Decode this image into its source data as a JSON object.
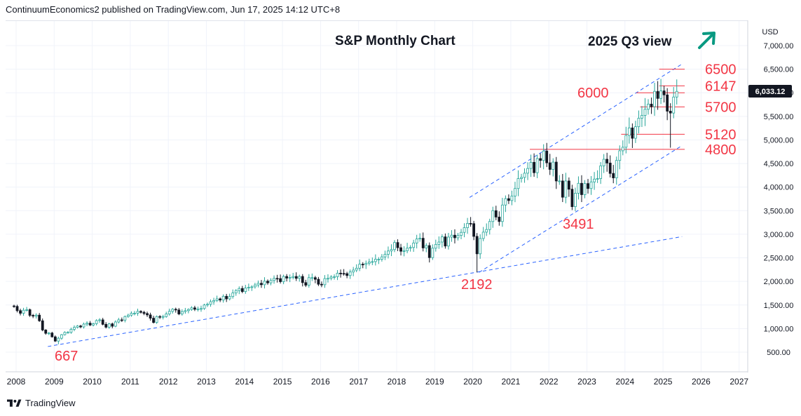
{
  "header": {
    "publisher": "ContinuumEconomics2 published on TradingView.com, Jun 17, 2025 14:12 UTC+8"
  },
  "footer": {
    "brand": "TradingView"
  },
  "currency": "USD",
  "last_price": "6,033.12",
  "colors": {
    "up": "#26a69a",
    "down": "#131722",
    "annotation": "#f23645",
    "trendline": "#2962ff",
    "arrow": "#089981",
    "grid": "#f0f3fa"
  },
  "chart_data": {
    "type": "candlestick",
    "title": "S&P Monthly Chart",
    "subtitle": "2025 Q3 view",
    "ylim": [
      0,
      7500
    ],
    "xlim": [
      2008.0,
      2027.2
    ],
    "y_ticks": [
      {
        "v": 500,
        "label": "500.00"
      },
      {
        "v": 1000,
        "label": "1,000.00"
      },
      {
        "v": 1500,
        "label": "1,500.00"
      },
      {
        "v": 2000,
        "label": "2,000.00"
      },
      {
        "v": 2500,
        "label": "2,500.00"
      },
      {
        "v": 3000,
        "label": "3,000.00"
      },
      {
        "v": 3500,
        "label": "3,500.00"
      },
      {
        "v": 4000,
        "label": "4,000.00"
      },
      {
        "v": 4500,
        "label": "4,500.00"
      },
      {
        "v": 5000,
        "label": "5,000.00"
      },
      {
        "v": 5500,
        "label": "5,500.00"
      },
      {
        "v": 6000,
        "label": "6,000.00"
      },
      {
        "v": 6500,
        "label": "6,500.00"
      },
      {
        "v": 7000,
        "label": "7,000.00"
      }
    ],
    "x_ticks": [
      "2008",
      "2009",
      "2010",
      "2011",
      "2012",
      "2013",
      "2014",
      "2015",
      "2016",
      "2017",
      "2018",
      "2019",
      "2020",
      "2021",
      "2022",
      "2023",
      "2024",
      "2025",
      "2026",
      "2027"
    ],
    "closes": [
      1470,
      1380,
      1325,
      1390,
      1400,
      1280,
      1265,
      1285,
      1165,
      970,
      900,
      905,
      825,
      735,
      795,
      870,
      920,
      920,
      985,
      1025,
      1055,
      1035,
      1095,
      1115,
      1075,
      1105,
      1170,
      1185,
      1090,
      1030,
      1100,
      1050,
      1140,
      1185,
      1180,
      1255,
      1285,
      1325,
      1325,
      1365,
      1345,
      1320,
      1290,
      1220,
      1130,
      1255,
      1245,
      1255,
      1310,
      1365,
      1410,
      1395,
      1310,
      1360,
      1380,
      1405,
      1440,
      1410,
      1415,
      1425,
      1500,
      1515,
      1570,
      1595,
      1630,
      1605,
      1685,
      1630,
      1680,
      1755,
      1805,
      1850,
      1785,
      1860,
      1875,
      1885,
      1925,
      1960,
      1930,
      2005,
      1970,
      2020,
      2065,
      2060,
      1995,
      2105,
      2070,
      2085,
      2105,
      2065,
      2105,
      1975,
      1920,
      2080,
      2080,
      2045,
      1940,
      1930,
      2060,
      2065,
      2095,
      2100,
      2175,
      2170,
      2165,
      2125,
      2200,
      2240,
      2280,
      2365,
      2360,
      2385,
      2410,
      2420,
      2470,
      2470,
      2520,
      2575,
      2645,
      2675,
      2825,
      2715,
      2640,
      2650,
      2705,
      2720,
      2815,
      2900,
      2915,
      2710,
      2760,
      2505,
      2705,
      2785,
      2835,
      2945,
      2750,
      2940,
      2980,
      2925,
      2975,
      3040,
      3140,
      3230,
      3225,
      2955,
      2585,
      2910,
      3045,
      3100,
      3270,
      3500,
      3365,
      3270,
      3620,
      3755,
      3715,
      3810,
      3970,
      4180,
      4205,
      4295,
      4395,
      4525,
      4305,
      4605,
      4565,
      4765,
      4515,
      4375,
      4530,
      4130,
      4130,
      3785,
      4130,
      3955,
      3585,
      3870,
      4080,
      3840,
      4075,
      3970,
      4110,
      4170,
      4180,
      4450,
      4590,
      4510,
      4290,
      4195,
      4565,
      4770,
      4845,
      5095,
      5255,
      5035,
      5280,
      5460,
      5520,
      5650,
      5760,
      5705,
      6030,
      5880,
      6040,
      5955,
      5610,
      5570,
      5910,
      6030
    ],
    "swing_lows": [
      {
        "label": "667",
        "value": 667,
        "date": "2009-03"
      },
      {
        "label": "2192",
        "value": 2192,
        "date": "2020-03"
      },
      {
        "label": "3491",
        "value": 3491,
        "date": "2022-10"
      }
    ],
    "levels": [
      {
        "label": "6500",
        "value": 6500
      },
      {
        "label": "6147",
        "value": 6147
      },
      {
        "label": "6000",
        "value": 6000
      },
      {
        "label": "5700",
        "value": 5700
      },
      {
        "label": "5120",
        "value": 5120
      },
      {
        "label": "4800",
        "value": 4800
      }
    ],
    "trendlines": [
      {
        "from": [
          "2008-11",
          620
        ],
        "to": [
          "2025-07",
          2950
        ]
      },
      {
        "from": [
          "2020-03",
          2192
        ],
        "to": [
          "2025-07",
          4880
        ]
      },
      {
        "from": [
          "2019-12",
          3780
        ],
        "to": [
          "2025-07",
          6610
        ]
      }
    ]
  }
}
